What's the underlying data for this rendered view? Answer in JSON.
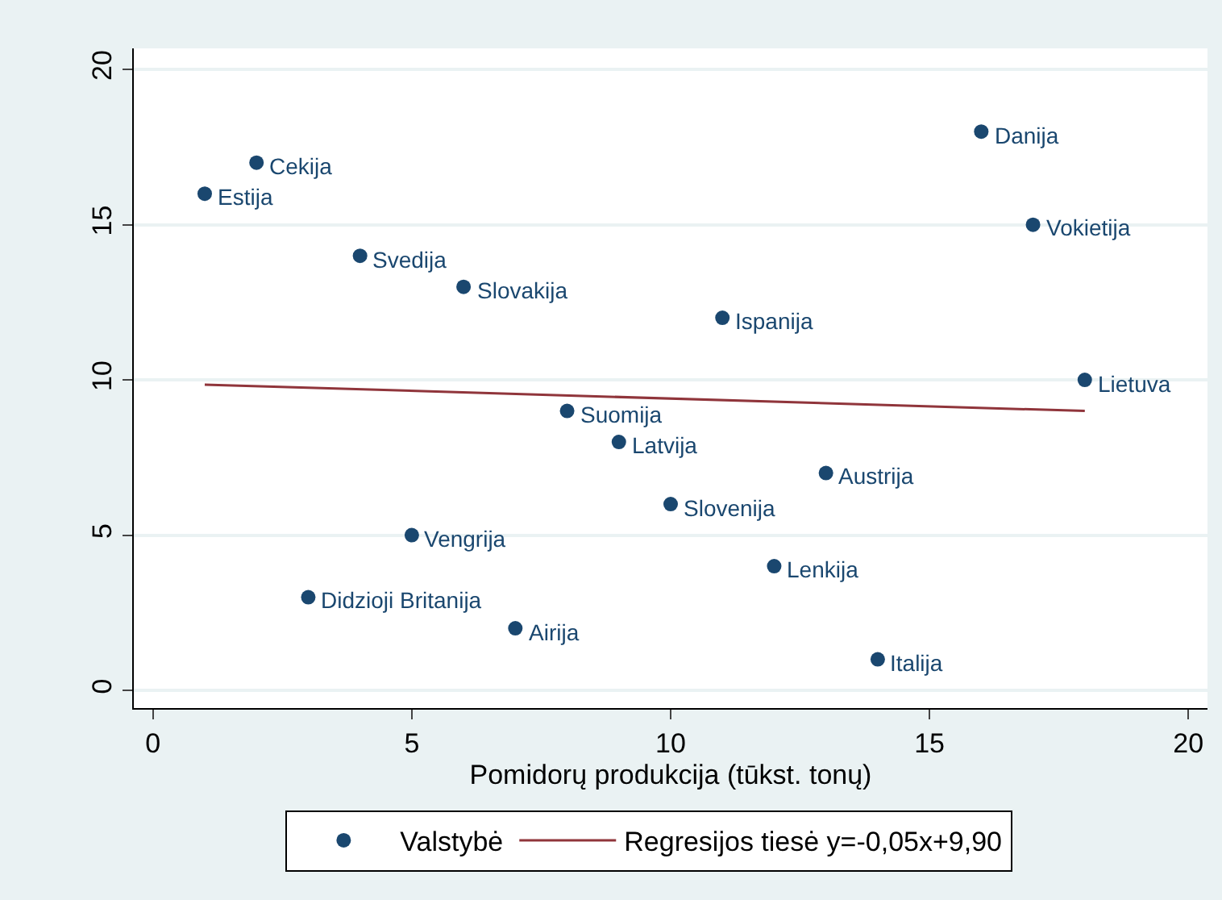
{
  "chart_data": {
    "type": "scatter",
    "xlabel": "Pomidorų produkcija (tūkst. tonų)",
    "xlim": [
      -0.37,
      20.37
    ],
    "xticks": [
      0,
      5,
      10,
      15,
      20
    ],
    "ylim": [
      -0.57,
      20.68
    ],
    "yticks": [
      0,
      5,
      10,
      15,
      20
    ],
    "grid": "y",
    "legend": "bottom",
    "marker": "circle",
    "series": [
      {
        "name": "Valstybė",
        "color": "#1a476f",
        "x": [
          1,
          2,
          3,
          4,
          5,
          6,
          7,
          8,
          9,
          10,
          11,
          12,
          13,
          14,
          16,
          17,
          18
        ],
        "values": [
          16,
          17,
          3,
          14,
          5,
          13,
          2,
          9,
          8,
          6,
          12,
          4,
          7,
          1,
          18,
          15,
          10
        ]
      },
      {
        "name": "Regresijos tiesė y=-0,05x+9,90",
        "type": "line",
        "color": "#90353b",
        "marker": "none",
        "x": [
          1,
          18
        ],
        "values": [
          9.85,
          9.0
        ]
      }
    ],
    "annotations": [
      {
        "text": "Estija",
        "x": 1,
        "y": 16
      },
      {
        "text": "Cekija",
        "x": 2,
        "y": 17
      },
      {
        "text": "Didzioji Britanija",
        "x": 3,
        "y": 3
      },
      {
        "text": "Svedija",
        "x": 4,
        "y": 14
      },
      {
        "text": "Vengrija",
        "x": 5,
        "y": 5
      },
      {
        "text": "Slovakija",
        "x": 6,
        "y": 13
      },
      {
        "text": "Airija",
        "x": 7,
        "y": 2
      },
      {
        "text": "Suomija",
        "x": 8,
        "y": 9
      },
      {
        "text": "Latvija",
        "x": 9,
        "y": 8
      },
      {
        "text": "Slovenija",
        "x": 10,
        "y": 6
      },
      {
        "text": "Ispanija",
        "x": 11,
        "y": 12
      },
      {
        "text": "Lenkija",
        "x": 12,
        "y": 4
      },
      {
        "text": "Austrija",
        "x": 13,
        "y": 7
      },
      {
        "text": "Italija",
        "x": 14,
        "y": 1
      },
      {
        "text": "Danija",
        "x": 16,
        "y": 18
      },
      {
        "text": "Vokietija",
        "x": 17,
        "y": 15
      },
      {
        "text": "Lietuva",
        "x": 18,
        "y": 10
      }
    ]
  }
}
